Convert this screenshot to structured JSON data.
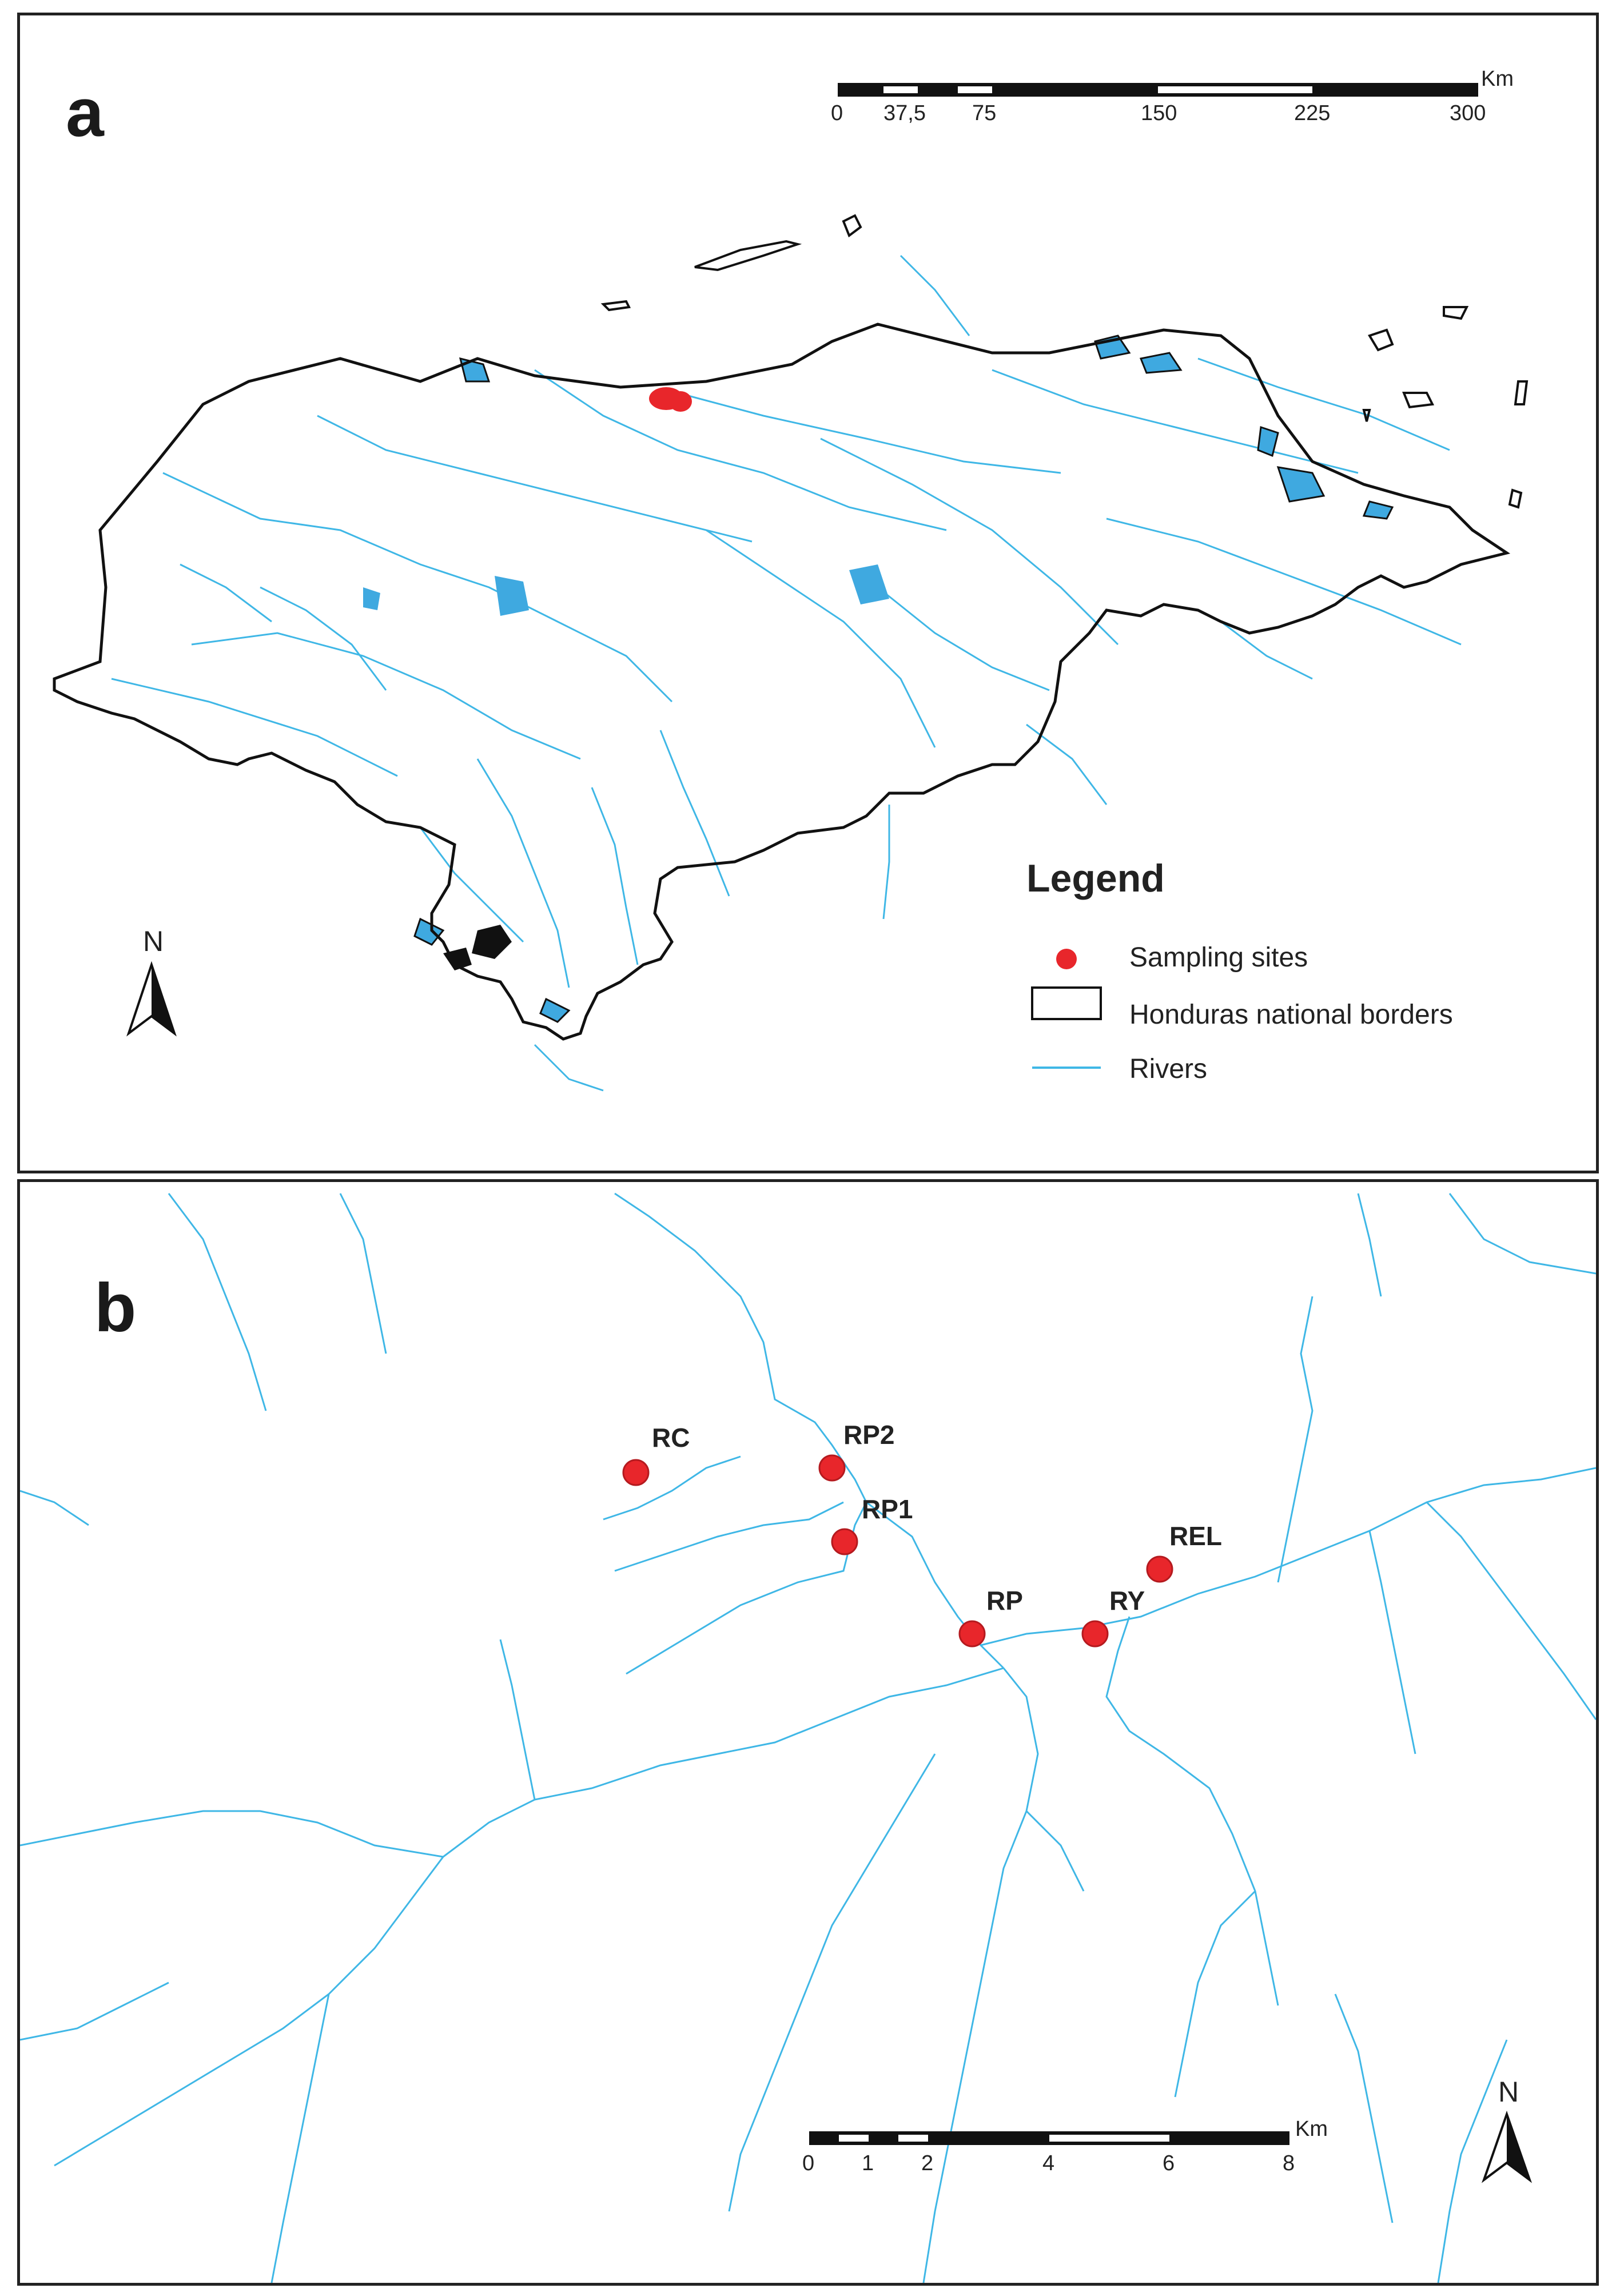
{
  "panel_a": {
    "label": "a",
    "scale": {
      "unit": "Km",
      "ticks": [
        "0",
        "37,5",
        "75",
        "150",
        "225",
        "300"
      ]
    },
    "legend": {
      "title": "Legend",
      "items": [
        {
          "label": "Sampling sites",
          "symbol": "red-dot"
        },
        {
          "label": "Honduras national borders",
          "symbol": "outline-box"
        },
        {
          "label": "Rivers",
          "symbol": "blue-line"
        }
      ]
    },
    "north": "N"
  },
  "panel_b": {
    "label": "b",
    "sites": [
      "RC",
      "RP2",
      "RP1",
      "RP",
      "RY",
      "REL"
    ],
    "scale": {
      "unit": "Km",
      "ticks": [
        "0",
        "1",
        "2",
        "4",
        "6",
        "8"
      ]
    },
    "north": "N"
  },
  "colors": {
    "river": "#3fb7e6",
    "site": "#e8262b",
    "border": "#111111",
    "lake": "#3fa9e0"
  }
}
